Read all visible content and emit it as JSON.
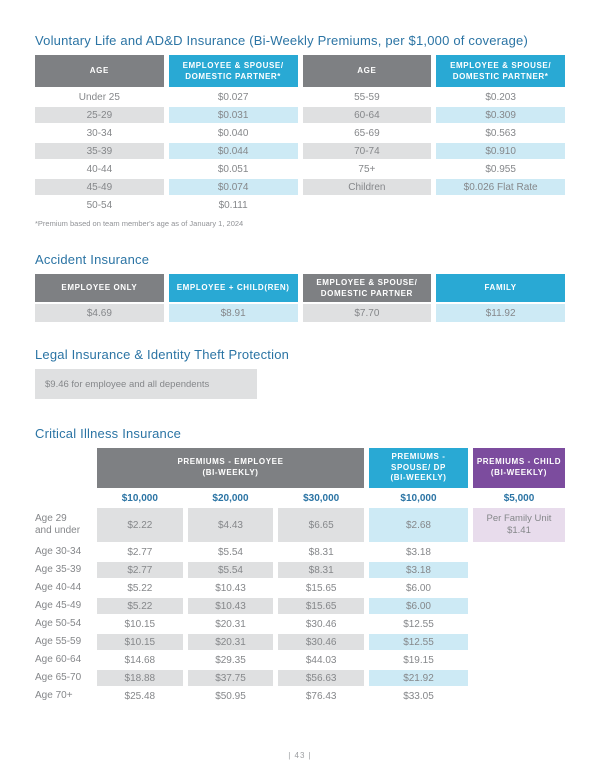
{
  "page": {
    "number": "| 43 |"
  },
  "colors": {
    "heading_blue": "#2B74A4",
    "header_gray": "#7E8083",
    "header_cyan": "#29A9D4",
    "header_purple": "#7C4C9E",
    "cell_light_gray": "#DFE0E1",
    "cell_light_cyan": "#CDEAF5",
    "cell_light_purple": "#E8DCEC",
    "body_text_gray": "#85878A"
  },
  "voluntary_life": {
    "title": "Voluntary Life and AD&D Insurance (Bi-Weekly Premiums, per $1,000 of coverage)",
    "headers": [
      "AGE",
      "EMPLOYEE & SPOUSE/\nDOMESTIC PARTNER*",
      "AGE",
      "EMPLOYEE & SPOUSE/\nDOMESTIC PARTNER*"
    ],
    "left_rows": [
      [
        "Under 25",
        "$0.027"
      ],
      [
        "25-29",
        "$0.031"
      ],
      [
        "30-34",
        "$0.040"
      ],
      [
        "35-39",
        "$0.044"
      ],
      [
        "40-44",
        "$0.051"
      ],
      [
        "45-49",
        "$0.074"
      ],
      [
        "50-54",
        "$0.111"
      ]
    ],
    "right_rows": [
      [
        "55-59",
        "$0.203"
      ],
      [
        "60-64",
        "$0.309"
      ],
      [
        "65-69",
        "$0.563"
      ],
      [
        "70-74",
        "$0.910"
      ],
      [
        "75+",
        "$0.955"
      ],
      [
        "Children",
        "$0.026 Flat Rate"
      ]
    ],
    "footnote": "*Premium based on team member's age as of January 1, 2024"
  },
  "accident": {
    "title": "Accident Insurance",
    "headers": [
      "EMPLOYEE ONLY",
      "EMPLOYEE + CHILD(REN)",
      "EMPLOYEE & SPOUSE/\nDOMESTIC PARTNER",
      "FAMILY"
    ],
    "values": [
      "$4.69",
      "$8.91",
      "$7.70",
      "$11.92"
    ]
  },
  "legal": {
    "title": "Legal Insurance & Identity Theft Protection",
    "text": "$9.46 for employee and all dependents"
  },
  "critical": {
    "title": "Critical Illness Insurance",
    "group_headers": [
      "PREMIUMS - EMPLOYEE\n(BI-WEEKLY)",
      "PREMIUMS -\nSPOUSE/ DP\n(BI-WEEKLY)",
      "PREMIUMS - CHILD\n(BI-WEEKLY)"
    ],
    "amount_headers": [
      "$10,000",
      "$20,000",
      "$30,000",
      "$10,000",
      "$5,000"
    ],
    "rows": [
      {
        "label": "Age 29\nand under",
        "values": [
          "$2.22",
          "$4.43",
          "$6.65",
          "$2.68"
        ],
        "child": "Per Family Unit\n$1.41"
      },
      {
        "label": "Age 30-34",
        "values": [
          "$2.77",
          "$5.54",
          "$8.31",
          "$3.18"
        ],
        "child": ""
      },
      {
        "label": "Age 35-39",
        "values": [
          "$2.77",
          "$5.54",
          "$8.31",
          "$3.18"
        ],
        "child": ""
      },
      {
        "label": "Age 40-44",
        "values": [
          "$5.22",
          "$10.43",
          "$15.65",
          "$6.00"
        ],
        "child": ""
      },
      {
        "label": "Age 45-49",
        "values": [
          "$5.22",
          "$10.43",
          "$15.65",
          "$6.00"
        ],
        "child": ""
      },
      {
        "label": "Age 50-54",
        "values": [
          "$10.15",
          "$20.31",
          "$30.46",
          "$12.55"
        ],
        "child": ""
      },
      {
        "label": "Age 55-59",
        "values": [
          "$10.15",
          "$20.31",
          "$30.46",
          "$12.55"
        ],
        "child": ""
      },
      {
        "label": "Age 60-64",
        "values": [
          "$14.68",
          "$29.35",
          "$44.03",
          "$19.15"
        ],
        "child": ""
      },
      {
        "label": "Age 65-70",
        "values": [
          "$18.88",
          "$37.75",
          "$56.63",
          "$21.92"
        ],
        "child": ""
      },
      {
        "label": "Age 70+",
        "values": [
          "$25.48",
          "$50.95",
          "$76.43",
          "$33.05"
        ],
        "child": ""
      }
    ]
  }
}
